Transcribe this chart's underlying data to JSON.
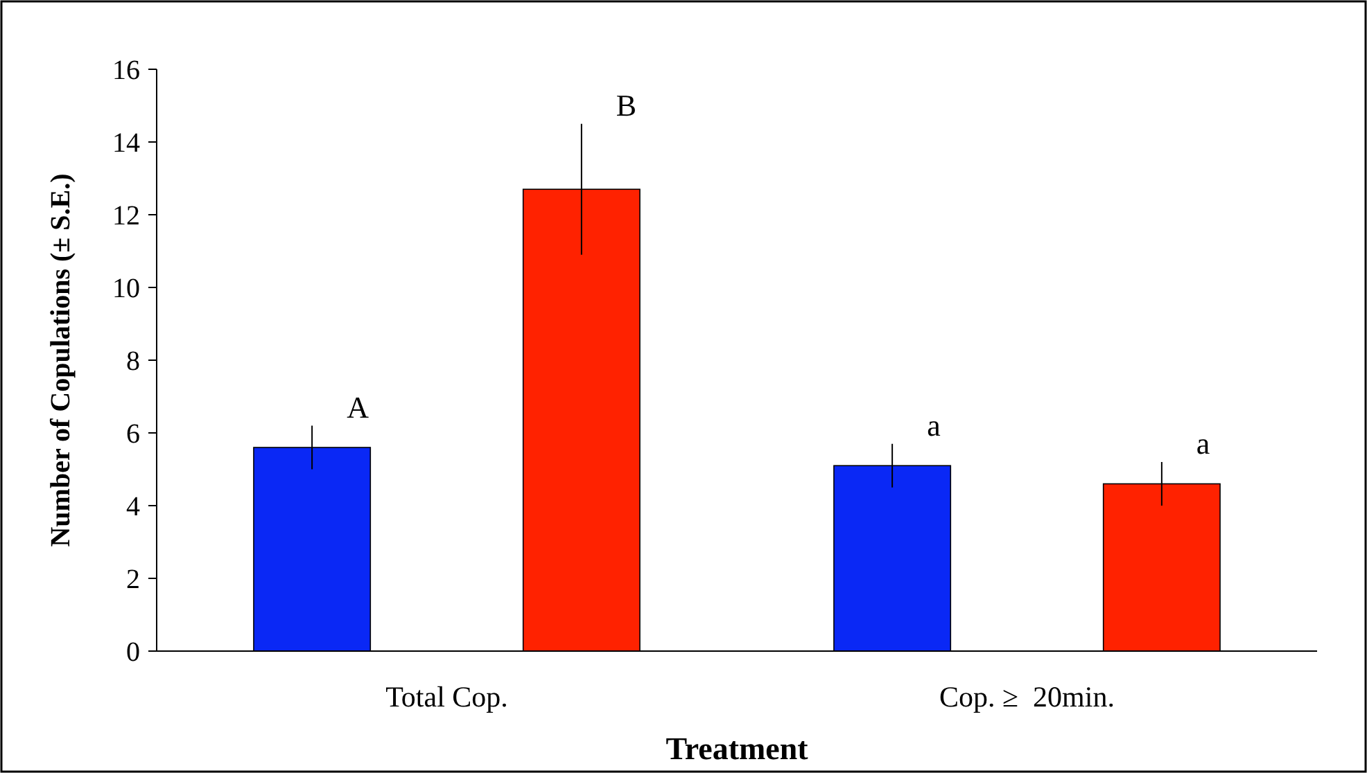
{
  "chart_data": {
    "type": "bar",
    "xlabel": "Treatment",
    "ylabel": "Number of Copulations (± S.E.)",
    "categories": [
      "Total Cop.",
      "Cop. ≥  20min."
    ],
    "series": [
      {
        "color": "#0a28f5",
        "values": [
          5.6,
          5.1
        ],
        "errors": [
          0.6,
          0.6
        ]
      },
      {
        "color": "#ff2200",
        "values": [
          12.7,
          4.6
        ],
        "errors": [
          1.8,
          0.6
        ]
      }
    ],
    "ylim": [
      0,
      16
    ],
    "yticks": [
      0,
      2,
      4,
      6,
      8,
      10,
      12,
      14,
      16
    ],
    "grid": false,
    "annotations": [
      "A",
      "B",
      "a",
      "a"
    ]
  }
}
